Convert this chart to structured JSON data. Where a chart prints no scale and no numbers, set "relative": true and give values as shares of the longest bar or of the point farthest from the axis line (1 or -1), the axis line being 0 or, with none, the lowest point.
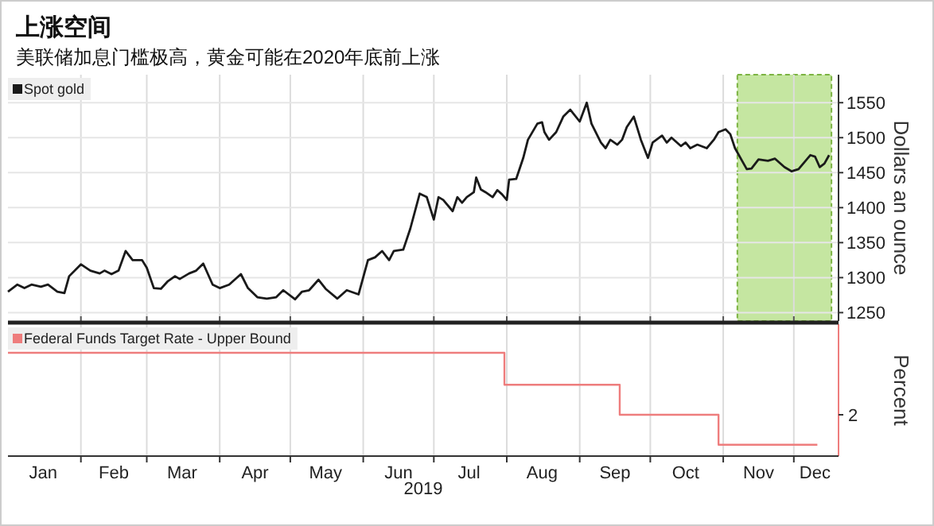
{
  "chart_data": [
    {
      "type": "line",
      "title": "上涨空间",
      "subtitle": "美联储加息门槛极高，黄金可能在2020年底前上涨",
      "ylabel": "Dollars an ounce",
      "x": [
        "2019-01-01",
        "2019-01-05",
        "2019-01-08",
        "2019-01-11",
        "2019-01-15",
        "2019-01-18",
        "2019-01-22",
        "2019-01-25",
        "2019-01-27",
        "2019-02-01",
        "2019-02-05",
        "2019-02-09",
        "2019-02-11",
        "2019-02-14",
        "2019-02-17",
        "2019-02-20",
        "2019-02-23",
        "2019-02-27",
        "2019-03-01",
        "2019-03-04",
        "2019-03-07",
        "2019-03-10",
        "2019-03-13",
        "2019-03-15",
        "2019-03-19",
        "2019-03-22",
        "2019-03-25",
        "2019-03-29",
        "2019-04-01",
        "2019-04-05",
        "2019-04-10",
        "2019-04-13",
        "2019-04-17",
        "2019-04-21",
        "2019-04-25",
        "2019-04-28",
        "2019-05-03",
        "2019-05-06",
        "2019-05-09",
        "2019-05-13",
        "2019-05-16",
        "2019-05-21",
        "2019-05-25",
        "2019-05-30",
        "2019-06-03",
        "2019-06-06",
        "2019-06-09",
        "2019-06-12",
        "2019-06-14",
        "2019-06-18",
        "2019-06-21",
        "2019-06-25",
        "2019-06-28",
        "2019-07-01",
        "2019-07-03",
        "2019-07-05",
        "2019-07-09",
        "2019-07-11",
        "2019-07-13",
        "2019-07-15",
        "2019-07-18",
        "2019-07-19",
        "2019-07-21",
        "2019-07-23",
        "2019-07-26",
        "2019-07-28",
        "2019-07-30",
        "2019-08-01",
        "2019-08-02",
        "2019-08-05",
        "2019-08-08",
        "2019-08-10",
        "2019-08-14",
        "2019-08-16",
        "2019-08-17",
        "2019-08-19",
        "2019-08-22",
        "2019-08-25",
        "2019-08-28",
        "2019-09-01",
        "2019-09-04",
        "2019-09-06",
        "2019-09-10",
        "2019-09-12",
        "2019-09-14",
        "2019-09-17",
        "2019-09-19",
        "2019-09-21",
        "2019-09-24",
        "2019-09-27",
        "2019-09-30",
        "2019-10-02",
        "2019-10-06",
        "2019-10-08",
        "2019-10-10",
        "2019-10-14",
        "2019-10-16",
        "2019-10-18",
        "2019-10-21",
        "2019-10-25",
        "2019-10-28",
        "2019-10-30",
        "2019-11-02",
        "2019-11-04",
        "2019-11-06",
        "2019-11-09",
        "2019-11-11",
        "2019-11-13",
        "2019-11-16",
        "2019-11-20",
        "2019-11-23",
        "2019-11-27",
        "2019-11-30",
        "2019-12-03",
        "2019-12-05",
        "2019-12-08",
        "2019-12-10",
        "2019-12-12",
        "2019-12-14",
        "2019-12-16"
      ],
      "series": [
        {
          "name": "Spot gold",
          "color": "#1a1a1a",
          "values": [
            1280,
            1290,
            1285,
            1290,
            1287,
            1290,
            1280,
            1278,
            1302,
            1319,
            1310,
            1306,
            1310,
            1305,
            1310,
            1338,
            1325,
            1325,
            1314,
            1285,
            1284,
            1295,
            1302,
            1298,
            1306,
            1310,
            1320,
            1290,
            1285,
            1290,
            1305,
            1285,
            1272,
            1270,
            1272,
            1282,
            1269,
            1280,
            1282,
            1297,
            1284,
            1270,
            1282,
            1276,
            1325,
            1329,
            1338,
            1325,
            1338,
            1340,
            1370,
            1420,
            1415,
            1383,
            1415,
            1411,
            1395,
            1415,
            1407,
            1415,
            1422,
            1443,
            1426,
            1422,
            1415,
            1425,
            1419,
            1411,
            1440,
            1441,
            1471,
            1497,
            1520,
            1522,
            1508,
            1497,
            1508,
            1530,
            1540,
            1523,
            1550,
            1520,
            1493,
            1485,
            1497,
            1490,
            1497,
            1515,
            1530,
            1497,
            1471,
            1493,
            1503,
            1493,
            1500,
            1488,
            1493,
            1485,
            1490,
            1485,
            1497,
            1508,
            1512,
            1505,
            1485,
            1467,
            1455,
            1456,
            1469,
            1467,
            1470,
            1458,
            1452,
            1455,
            1463,
            1475,
            1473,
            1458,
            1463,
            1475
          ]
        }
      ],
      "xlim": [
        "2019-01-01",
        "2019-12-20"
      ],
      "xticks": [
        {
          "value": "2019-02-01",
          "label": null
        },
        {
          "value": "2019-03-01",
          "label": null
        },
        {
          "value": "2019-04-01",
          "label": null
        },
        {
          "value": "2019-05-01",
          "label": null
        },
        {
          "value": "2019-06-01",
          "label": null
        },
        {
          "value": "2019-07-01",
          "label": null
        },
        {
          "value": "2019-08-01",
          "label": null
        },
        {
          "value": "2019-09-01",
          "label": null
        },
        {
          "value": "2019-10-01",
          "label": null
        },
        {
          "value": "2019-11-01",
          "label": null
        },
        {
          "value": "2019-12-01",
          "label": null
        }
      ],
      "ylim": [
        1238,
        1590
      ],
      "yticks": [
        1250,
        1300,
        1350,
        1400,
        1450,
        1500,
        1550
      ],
      "grid": true,
      "legend": "top left",
      "tick_labels": "y",
      "bands": [
        {
          "axis": "x",
          "from": "2019-11-07",
          "to": "2019-12-17",
          "color": "#b6e08a"
        }
      ]
    },
    {
      "type": "step",
      "ylabel": "Percent",
      "xlabel": "2019",
      "x": [
        "2019-01-01",
        "2019-07-31",
        "2019-09-18",
        "2019-10-30",
        "2019-12-11"
      ],
      "series": [
        {
          "name": "Federal Funds Target Rate - Upper Bound",
          "color": "#ee7d7d",
          "values": [
            1,
            0.69,
            0.4,
            0.11,
            0.11
          ]
        }
      ],
      "relative": true,
      "xlim": [
        "2019-01-01",
        "2019-12-20"
      ],
      "xticks": [
        {
          "value": "2019-01-16",
          "label": "Jan"
        },
        {
          "value": "2019-02-01",
          "label": null
        },
        {
          "value": "2019-02-15",
          "label": "Feb"
        },
        {
          "value": "2019-03-01",
          "label": null
        },
        {
          "value": "2019-03-16",
          "label": "Mar"
        },
        {
          "value": "2019-04-01",
          "label": null
        },
        {
          "value": "2019-04-16",
          "label": "Apr"
        },
        {
          "value": "2019-05-01",
          "label": null
        },
        {
          "value": "2019-05-16",
          "label": "May"
        },
        {
          "value": "2019-06-01",
          "label": null
        },
        {
          "value": "2019-06-16",
          "label": "Jun"
        },
        {
          "value": "2019-07-01",
          "label": null
        },
        {
          "value": "2019-07-16",
          "label": "Jul"
        },
        {
          "value": "2019-08-01",
          "label": null
        },
        {
          "value": "2019-08-16",
          "label": "Aug"
        },
        {
          "value": "2019-09-01",
          "label": null
        },
        {
          "value": "2019-09-16",
          "label": "Sep"
        },
        {
          "value": "2019-10-01",
          "label": null
        },
        {
          "value": "2019-10-16",
          "label": "Oct"
        },
        {
          "value": "2019-11-01",
          "label": null
        },
        {
          "value": "2019-11-16",
          "label": "Nov"
        },
        {
          "value": "2019-12-01",
          "label": null
        },
        {
          "value": "2019-12-10",
          "label": "Dec"
        }
      ],
      "grid": "x",
      "legend": "top left",
      "tick_labels": "x",
      "annotations": [
        "2"
      ]
    }
  ]
}
